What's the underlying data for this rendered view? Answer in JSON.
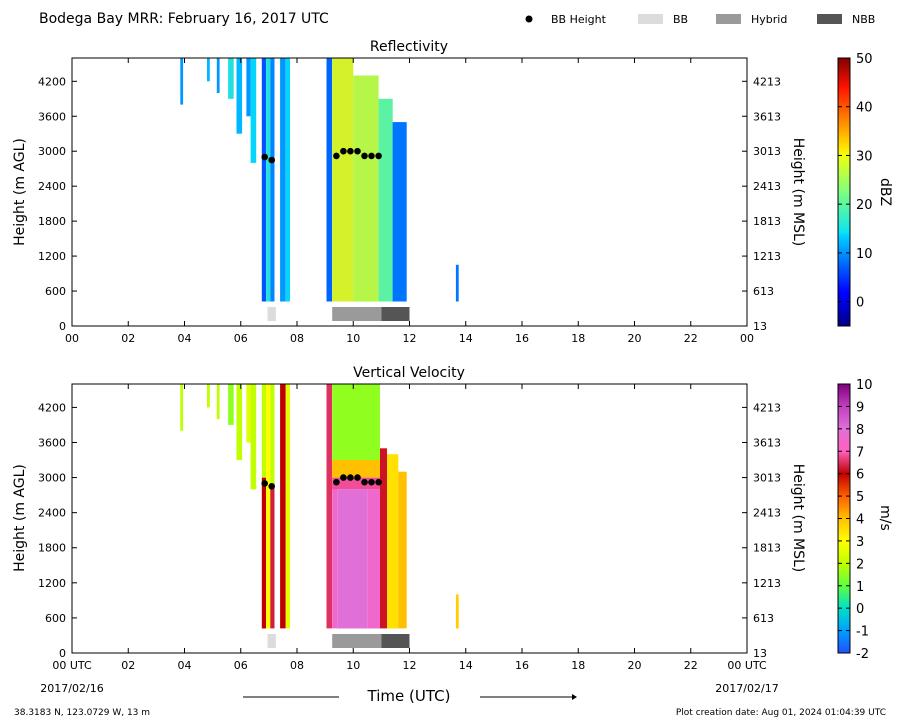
{
  "page_title": "Bodega Bay MRR:  February 16, 2017 UTC",
  "legend": [
    {
      "label": "BB Height",
      "kind": "dot",
      "color": "#000000"
    },
    {
      "label": "BB",
      "kind": "box",
      "color": "#dcdcdc"
    },
    {
      "label": "Hybrid",
      "kind": "box",
      "color": "#9a9a9a"
    },
    {
      "label": "NBB",
      "kind": "box",
      "color": "#555555"
    }
  ],
  "x_axis": {
    "ticks": [
      "00",
      "02",
      "04",
      "06",
      "08",
      "10",
      "12",
      "14",
      "16",
      "18",
      "20",
      "22",
      "00"
    ],
    "bottom_ticks": [
      "00 UTC",
      "02",
      "04",
      "06",
      "08",
      "10",
      "12",
      "14",
      "16",
      "18",
      "20",
      "22",
      "00 UTC"
    ],
    "start_date": "2017/02/16",
    "end_date": "2017/02/17",
    "label": "Time (UTC)"
  },
  "footer": {
    "location": "38.3183 N, 123.0729 W, 13 m",
    "created": "Plot creation date: Aug 01, 2024 01:04:39 UTC"
  },
  "chart_data": [
    {
      "type": "heatmap",
      "title": "Reflectivity",
      "xlabel": "",
      "ylabel": "Height (m AGL)",
      "ylabel_right": "Height (m MSL)",
      "xlim": [
        0,
        24
      ],
      "ylim": [
        0,
        4600
      ],
      "y_ticks": [
        0,
        600,
        1200,
        1800,
        2400,
        3000,
        3600,
        4200
      ],
      "y_ticks_right": [
        "13",
        "613",
        "1213",
        "1813",
        "2413",
        "3013",
        "3613",
        "4213"
      ],
      "colorbar": {
        "label": "dBZ",
        "range": [
          -5,
          50
        ],
        "ticks": [
          0,
          10,
          20,
          30,
          40,
          50
        ],
        "colormap": "jet"
      },
      "bb_height": {
        "x": [
          6.85,
          7.1,
          9.4,
          9.65,
          9.9,
          10.15,
          10.4,
          10.65,
          10.9
        ],
        "y": [
          2900,
          2850,
          2920,
          3000,
          3000,
          3000,
          2920,
          2920,
          2920
        ]
      },
      "bb_type": [
        {
          "type": "BB",
          "start": 6.95,
          "end": 7.25
        },
        {
          "type": "Hybrid",
          "start": 9.25,
          "end": 11.0
        },
        {
          "type": "NBB",
          "start": 11.0,
          "end": 12.0
        }
      ],
      "echo_regions": [
        {
          "start": 3.85,
          "end": 3.95,
          "bottom": 3800,
          "top": 4600,
          "value": 10
        },
        {
          "start": 4.8,
          "end": 4.9,
          "bottom": 4200,
          "top": 4600,
          "value": 12
        },
        {
          "start": 5.15,
          "end": 5.25,
          "bottom": 4000,
          "top": 4600,
          "value": 10
        },
        {
          "start": 5.55,
          "end": 5.75,
          "bottom": 3900,
          "top": 4600,
          "value": 16
        },
        {
          "start": 5.85,
          "end": 6.05,
          "bottom": 3300,
          "top": 4600,
          "value": 12
        },
        {
          "start": 6.2,
          "end": 6.35,
          "bottom": 3600,
          "top": 4600,
          "value": 10
        },
        {
          "start": 6.35,
          "end": 6.55,
          "bottom": 2800,
          "top": 4600,
          "value": 14
        },
        {
          "start": 6.75,
          "end": 6.9,
          "bottom": 420,
          "top": 4600,
          "value": 6
        },
        {
          "start": 6.9,
          "end": 7.05,
          "bottom": 420,
          "top": 4600,
          "value": 16
        },
        {
          "start": 7.05,
          "end": 7.2,
          "bottom": 420,
          "top": 4600,
          "value": 9
        },
        {
          "start": 7.4,
          "end": 7.6,
          "bottom": 420,
          "top": 4600,
          "value": 10
        },
        {
          "start": 7.6,
          "end": 7.75,
          "bottom": 420,
          "top": 4600,
          "value": 14
        },
        {
          "start": 9.05,
          "end": 9.25,
          "bottom": 420,
          "top": 4600,
          "value": 7
        },
        {
          "start": 9.25,
          "end": 10.0,
          "bottom": 420,
          "top": 4600,
          "value": 28
        },
        {
          "start": 10.0,
          "end": 10.9,
          "bottom": 420,
          "top": 4300,
          "value": 26
        },
        {
          "start": 10.9,
          "end": 11.4,
          "bottom": 420,
          "top": 3900,
          "value": 20
        },
        {
          "start": 11.4,
          "end": 11.9,
          "bottom": 420,
          "top": 3500,
          "value": 8
        },
        {
          "start": 13.65,
          "end": 13.75,
          "bottom": 420,
          "top": 1050,
          "value": 8
        }
      ]
    },
    {
      "type": "heatmap",
      "title": "Vertical Velocity",
      "xlabel": "Time (UTC)",
      "ylabel": "Height (m AGL)",
      "ylabel_right": "Height (m MSL)",
      "xlim": [
        0,
        24
      ],
      "ylim": [
        0,
        4600
      ],
      "y_ticks": [
        0,
        600,
        1200,
        1800,
        2400,
        3000,
        3600,
        4200
      ],
      "y_ticks_right": [
        "13",
        "613",
        "1213",
        "1813",
        "2413",
        "3013",
        "3613",
        "4213"
      ],
      "colorbar": {
        "label": "m/s",
        "range": [
          -2,
          10
        ],
        "ticks": [
          -2,
          -1,
          0,
          1,
          2,
          3,
          4,
          5,
          6,
          7,
          8,
          9,
          10
        ],
        "colormap": "velocity"
      },
      "bb_height": {
        "x": [
          6.85,
          7.1,
          9.4,
          9.65,
          9.9,
          10.15,
          10.4,
          10.65,
          10.9
        ],
        "y": [
          2900,
          2850,
          2920,
          3000,
          3000,
          3000,
          2920,
          2920,
          2920
        ]
      },
      "bb_type": [
        {
          "type": "BB",
          "start": 6.95,
          "end": 7.25
        },
        {
          "type": "Hybrid",
          "start": 9.25,
          "end": 11.0
        },
        {
          "type": "NBB",
          "start": 11.0,
          "end": 12.0
        }
      ],
      "echo_regions": [
        {
          "start": 3.85,
          "end": 3.95,
          "bottom": 3800,
          "top": 4600,
          "value": 2
        },
        {
          "start": 4.8,
          "end": 4.9,
          "bottom": 4200,
          "top": 4600,
          "value": 2
        },
        {
          "start": 5.15,
          "end": 5.25,
          "bottom": 4000,
          "top": 4600,
          "value": 2
        },
        {
          "start": 5.55,
          "end": 5.75,
          "bottom": 3900,
          "top": 4600,
          "value": 1.5
        },
        {
          "start": 5.85,
          "end": 6.05,
          "bottom": 3300,
          "top": 4600,
          "value": 2
        },
        {
          "start": 6.2,
          "end": 6.35,
          "bottom": 3600,
          "top": 4600,
          "value": 2.5
        },
        {
          "start": 6.35,
          "end": 6.55,
          "bottom": 2800,
          "top": 4600,
          "value": 2
        },
        {
          "start": 6.75,
          "end": 6.9,
          "bottom": 420,
          "top": 3000,
          "value": 6
        },
        {
          "start": 6.75,
          "end": 6.9,
          "bottom": 3000,
          "top": 4600,
          "value": 2
        },
        {
          "start": 6.9,
          "end": 7.05,
          "bottom": 420,
          "top": 4600,
          "value": 3
        },
        {
          "start": 7.05,
          "end": 7.2,
          "bottom": 420,
          "top": 2900,
          "value": 6.3
        },
        {
          "start": 7.05,
          "end": 7.2,
          "bottom": 2900,
          "top": 4600,
          "value": 2
        },
        {
          "start": 7.4,
          "end": 7.6,
          "bottom": 420,
          "top": 4600,
          "value": 6
        },
        {
          "start": 7.6,
          "end": 7.75,
          "bottom": 420,
          "top": 4600,
          "value": 2.5
        },
        {
          "start": 9.05,
          "end": 9.25,
          "bottom": 420,
          "top": 4600,
          "value": 6.5
        },
        {
          "start": 9.25,
          "end": 9.45,
          "bottom": 420,
          "top": 2900,
          "value": 7.5
        },
        {
          "start": 9.45,
          "end": 10.5,
          "bottom": 420,
          "top": 2800,
          "value": 8
        },
        {
          "start": 10.5,
          "end": 10.95,
          "bottom": 420,
          "top": 2800,
          "value": 7.5
        },
        {
          "start": 9.25,
          "end": 10.95,
          "bottom": 2800,
          "top": 3000,
          "value": 6.8
        },
        {
          "start": 9.25,
          "end": 10.95,
          "bottom": 3000,
          "top": 3300,
          "value": 4
        },
        {
          "start": 9.25,
          "end": 10.95,
          "bottom": 3300,
          "top": 4600,
          "value": 1.5
        },
        {
          "start": 10.95,
          "end": 11.2,
          "bottom": 420,
          "top": 3500,
          "value": 6.2
        },
        {
          "start": 11.2,
          "end": 11.6,
          "bottom": 420,
          "top": 3400,
          "value": 3.5
        },
        {
          "start": 11.6,
          "end": 11.9,
          "bottom": 420,
          "top": 3100,
          "value": 4
        },
        {
          "start": 13.65,
          "end": 13.75,
          "bottom": 420,
          "top": 1000,
          "value": 3.8
        }
      ]
    }
  ]
}
